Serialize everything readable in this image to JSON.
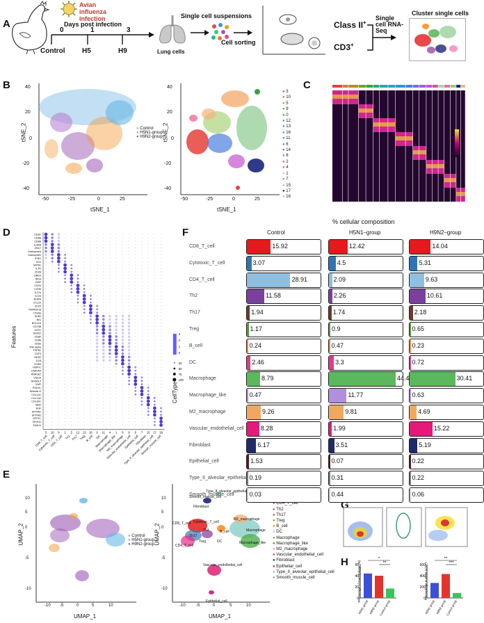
{
  "panels": {
    "a": "A",
    "b": "B",
    "c": "C",
    "d": "D",
    "e": "E",
    "f": "F",
    "g": "G",
    "h": "H"
  },
  "panel_a": {
    "infection": "Avian influenza infection",
    "days": "Days post infection",
    "d0": "0",
    "d1": "1",
    "d3": "3",
    "control": "Control",
    "h5": "H5",
    "h9": "H9",
    "lung": "Lung cells",
    "suspension": "Single cell suspensions",
    "sorting": "Cell sorting",
    "class2": "Class II",
    "class2_sup": "+",
    "cd3": "CD3",
    "cd3_sup": "+",
    "scrna": "Single cell RNA-Seq",
    "cluster": "Cluster single cells"
  },
  "panel_b": {
    "xlabel": "tSNE_1",
    "ylabel": "tSNE_2",
    "xticks": [
      "-50",
      "-25",
      "0",
      "25"
    ],
    "yticks": [
      "40",
      "20",
      "0",
      "-20",
      "-40"
    ],
    "legend_groups": [
      "Control",
      "H5N1-group",
      "H9N2-group"
    ],
    "legend_group_colors": [
      "#f39c38",
      "#67b7e6",
      "#9b59b6"
    ],
    "legend_clusters": [
      "3",
      "10",
      "5",
      "9",
      "0",
      "12",
      "13",
      "16",
      "11",
      "6",
      "14",
      "8",
      "2",
      "4",
      "1",
      "7",
      "15",
      "17",
      "18"
    ],
    "legend_cluster_colors": [
      "#e8413a",
      "#d97a2f",
      "#b08f28",
      "#7a9a2d",
      "#3aa23a",
      "#2ea47a",
      "#2aa7a0",
      "#22a7c4",
      "#2b97d6",
      "#4a7fe0",
      "#7a6ae0",
      "#a05ddf",
      "#c552cf",
      "#d84aaa",
      "#a5d6a7",
      "#ef6c9a",
      "#9ccc65",
      "#1a237e",
      "#f5b37a"
    ]
  },
  "panel_d": {
    "ylabel": "Features",
    "xlabel": "CellType",
    "genes": [
      "CD3D",
      "CD8A",
      "CD8B",
      "IL2RB",
      "GNLY",
      "GranzymeA",
      "GranzymeK",
      "IFNG",
      "CD4",
      "SATB1",
      "IL7R",
      "CD28",
      "DRD4",
      "IKKA",
      "MAF",
      "CCR4",
      "CCR6",
      "IL17A",
      "ICOS",
      "RORA",
      "CCL20",
      "CD25",
      "TNFRSF18",
      "ITGAE",
      "BLB2",
      "Bu1",
      "BCL11A",
      "CD79B",
      "XCR1",
      "SNX22",
      "CD80",
      "CD86",
      "CD83",
      "TNF-alpha",
      "TGFB1",
      "CSF3",
      "NOS2",
      "IL1B",
      "VCAN",
      "HSPH1",
      "DNAJA4",
      "RNASE2",
      "VSIG4",
      "ADGRL4",
      "VWF",
      "PODXL",
      "Selectin-E",
      "COL1A1",
      "COL1A2",
      "COL6A1",
      "BMX",
      "EHF",
      "SFTPA1",
      "SFTPA2",
      "SFTPC",
      "MYH11",
      "TAGLN"
    ],
    "cluster_ticks": [
      "3",
      "10",
      "9",
      "2",
      "5",
      "12",
      "13",
      "16",
      "0",
      "11",
      "4",
      "1",
      "6",
      "8",
      "6",
      "7",
      "15",
      "17",
      "18"
    ],
    "celltypes": [
      "CD8_T_cell",
      "Cytotoxic_T_cell",
      "CD4_T_cell",
      "Th2",
      "Th17",
      "Treg",
      "B_cell",
      "DC",
      "Macrophage",
      "Macrophage_like",
      "M2_macrophage",
      "Vascular_endothelial_cell",
      "Epithelial_cell",
      "Fibroblast",
      "Type_II_alveolar_epithelial_cell",
      "Smooth_muscle_cell"
    ],
    "legend_avg": [
      "3",
      "2",
      "1",
      "0"
    ],
    "legend_pct": [
      "25",
      "50",
      "75",
      "100"
    ]
  },
  "panel_e": {
    "xlabel": "UMAP_1",
    "ylabel": "UMAP_2",
    "xticks": [
      "-10",
      "-5",
      "0",
      "5",
      "10"
    ],
    "yticks": [
      "10",
      "5",
      "0",
      "-5",
      "-10"
    ],
    "legend_groups": [
      "Control",
      "H5N1-group",
      "H9N2-group"
    ],
    "legend_group_colors": [
      "#f39c38",
      "#67b7e6",
      "#9b59b6"
    ],
    "legend_celltypes": [
      "CD8_T_cell",
      "Cytotoxic_T_cell",
      "CD4_T_cell",
      "Th2",
      "Th17",
      "Treg",
      "B_cell",
      "DC",
      "Macrophage",
      "Macrophage_like",
      "M2_macrophage",
      "Vascular_endothelial_cell",
      "Fibroblast",
      "Epithelial_cell",
      "Type_II_alveolar_epithelial_cell",
      "Smooth_muscle_cell"
    ],
    "legend_celltype_colors": [
      "#e41a1c",
      "#377eb8",
      "#e7298a",
      "#984ea3",
      "#a65628",
      "#66a61e",
      "#ff7f00",
      "#a6cee3",
      "#4daf4a",
      "#b15928",
      "#f781bf",
      "#de2d7b",
      "#1a237e",
      "#c51b7d",
      "#80cbc4",
      "#999999"
    ],
    "map_labels": [
      "Type_II_alveolar_epithelial_cell",
      "Smooth_muscle_cell",
      "Fibroblast",
      "Cytotoxic_T_cell",
      "CD8_T_cell",
      "Th2",
      "B_cell",
      "Th17",
      "Treg",
      "DC",
      "CD4_T_cell",
      "M2_macrophage",
      "Macrophage",
      "Macrophage_like",
      "Vascular_endothelial_cell",
      "Epithelial_cell"
    ]
  },
  "panel_f": {
    "title": "% cellular composition",
    "groups": [
      "Control",
      "H5N1–group",
      "H9N2–group"
    ]
  },
  "panel_h": {
    "ylabel_left": "Percentage of macrophage (%)",
    "ylabel_right": "Macrophage number (x10⁴)",
    "sig": [
      "*",
      "**",
      "**",
      "***"
    ],
    "group_labels": [
      "H5N1 group",
      "H9N2 group",
      "Control group"
    ],
    "yticks_left": [
      "60",
      "40",
      "20",
      "0"
    ],
    "yticks_right": [
      "600",
      "400",
      "200",
      "0"
    ]
  },
  "chart_data": [
    {
      "type": "bar",
      "title": "% cellular composition",
      "categories": [
        "CD8_T_cell",
        "Cytotoxic_T_cell",
        "CD4_T_cell",
        "Th2",
        "Th17",
        "Treg",
        "B_cell",
        "DC",
        "Macrophage",
        "Macrophage_like",
        "M2_macrophage",
        "Vascular_endothelial_cell",
        "Fibroblast",
        "Epithelial_cell",
        "Type_II_alveolar_epithelial_cell",
        "Smooth_muscle_cell"
      ],
      "colors": [
        "#e41a1c",
        "#2e75b6",
        "#8fbfe0",
        "#7b3f9e",
        "#6b3a2a",
        "#5a9a3a",
        "#f08c33",
        "#e23c8a",
        "#5cb85c",
        "#b48ede",
        "#f0a860",
        "#e6197a",
        "#1f2a6b",
        "#5a1a16",
        "#7b7b7b",
        "#cccccc"
      ],
      "series": [
        {
          "name": "Control",
          "values": [
            15.92,
            3.07,
            28.91,
            11.58,
            1.94,
            1.17,
            0.24,
            2.46,
            8.79,
            0.47,
            9.26,
            8.28,
            6.17,
            1.53,
            0.19,
            0.03
          ]
        },
        {
          "name": "H5N1–group",
          "values": [
            12.42,
            4.5,
            2.09,
            2.26,
            1.74,
            0.9,
            0.47,
            3.3,
            44.4,
            11.77,
            9.81,
            1.99,
            3.51,
            0.07,
            0.31,
            0.44
          ]
        },
        {
          "name": "H9N2–group",
          "values": [
            14.04,
            5.31,
            9.63,
            10.61,
            2.18,
            0.65,
            0.23,
            0.72,
            30.41,
            0.63,
            4.69,
            15.22,
            5.19,
            0.22,
            0.22,
            0.06
          ]
        }
      ]
    },
    {
      "type": "bar",
      "ylabel": "Percentage of macrophage (%)",
      "categories": [
        "H5N1 group",
        "H9N2 group",
        "Control group"
      ],
      "values": [
        44,
        40,
        17
      ],
      "colors": [
        "#3b4fd8",
        "#e2342d",
        "#39c45a"
      ],
      "ylim": [
        0,
        60
      ]
    },
    {
      "type": "bar",
      "ylabel": "Macrophage number (x10⁴)",
      "categories": [
        "H5N1 group",
        "H9N2 group",
        "Control group"
      ],
      "values": [
        270,
        430,
        90
      ],
      "colors": [
        "#3b4fd8",
        "#e2342d",
        "#39c45a"
      ],
      "ylim": [
        0,
        600
      ]
    }
  ]
}
